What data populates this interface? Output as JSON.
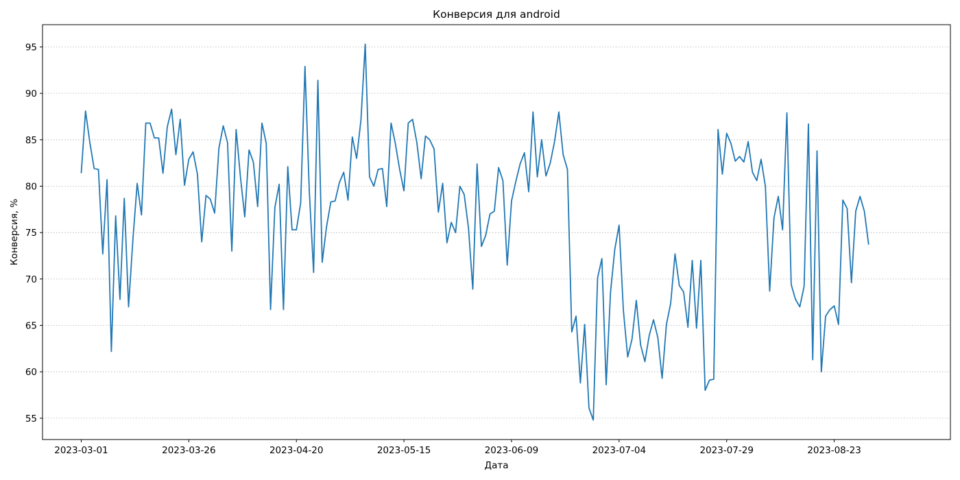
{
  "chart_data": {
    "type": "line",
    "title": "Конверсия для android",
    "xlabel": "Дата",
    "ylabel": "Конверсия, %",
    "x_start": "2023-03-01",
    "x_ticks": [
      "2023-03-01",
      "2023-03-26",
      "2023-04-20",
      "2023-05-15",
      "2023-06-09",
      "2023-07-04",
      "2023-07-29",
      "2023-08-23"
    ],
    "y_ticks": [
      55,
      60,
      65,
      70,
      75,
      80,
      85,
      90,
      95
    ],
    "xlim": [
      "2023-02-20",
      "2023-09-19"
    ],
    "ylim": [
      52.7,
      97.4
    ],
    "grid": "y-dotted",
    "color": "#1f77b4",
    "series": [
      {
        "values": [
          81.4,
          88.1,
          84.7,
          81.9,
          81.8,
          72.7,
          80.7,
          62.2,
          76.8,
          67.8,
          78.7,
          67.0,
          74.2,
          80.3,
          76.9,
          86.8,
          86.8,
          85.2,
          85.2,
          81.4,
          86.4,
          88.3,
          83.4,
          87.2,
          80.1,
          82.9,
          83.7,
          81.3,
          74.0,
          79.0,
          78.6,
          77.1,
          84.1,
          86.5,
          84.7,
          73.0,
          86.1,
          81.0,
          76.7,
          83.9,
          82.6,
          77.8,
          86.8,
          84.6,
          66.7,
          77.7,
          80.2,
          66.7,
          82.1,
          75.3,
          75.3,
          78.2,
          92.9,
          79.5,
          70.7,
          91.4,
          71.8,
          75.6,
          78.3,
          78.4,
          80.4,
          81.5,
          78.5,
          85.3,
          83.0,
          87.1,
          95.3,
          81.0,
          80.0,
          81.8,
          81.9,
          77.8,
          86.8,
          84.6,
          81.8,
          79.5,
          86.8,
          87.2,
          84.7,
          80.8,
          85.4,
          85.0,
          84.0,
          77.2,
          80.3,
          73.9,
          76.1,
          75.0,
          80.0,
          79.1,
          75.5,
          68.9,
          82.4,
          73.5,
          74.7,
          77.0,
          77.3,
          82.0,
          80.6,
          71.5,
          78.4,
          80.5,
          82.4,
          83.6,
          79.4,
          88.0,
          81.0,
          85.0,
          81.1,
          82.5,
          84.8,
          88.0,
          83.4,
          81.8,
          64.3,
          66.0,
          58.8,
          65.1,
          56.1,
          54.8,
          70.1,
          72.2,
          58.6,
          68.5,
          73.2,
          75.8,
          66.6,
          61.6,
          63.5,
          67.7,
          62.9,
          61.1,
          63.9,
          65.6,
          63.7,
          59.3,
          65.1,
          67.4,
          72.7,
          69.3,
          68.6,
          64.8,
          72.0,
          64.7,
          72.0,
          58.0,
          59.1,
          59.2,
          86.1,
          81.3,
          85.7,
          84.6,
          82.7,
          83.2,
          82.6,
          84.8,
          81.5,
          80.6,
          82.9,
          80.0,
          68.7,
          76.6,
          78.9,
          75.3,
          87.9,
          69.4,
          67.8,
          67.0,
          69.2,
          86.7,
          61.3,
          83.8,
          60.0,
          66.0,
          66.7,
          67.1,
          65.1,
          78.5,
          77.6,
          69.6,
          77.3,
          78.9,
          77.3,
          73.7
        ]
      }
    ]
  }
}
